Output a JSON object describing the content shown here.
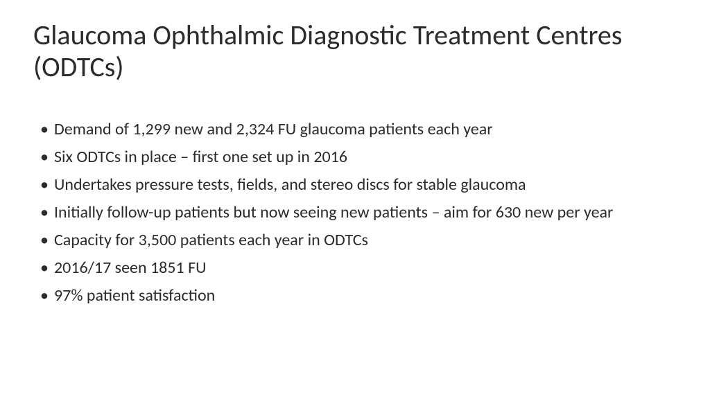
{
  "slide": {
    "title": "Glaucoma Ophthalmic Diagnostic Treatment Centres (ODTCs)",
    "bullets": [
      "Demand of 1,299 new and 2,324 FU glaucoma patients each year",
      "Six ODTCs in place – first one set up in 2016",
      "Undertakes pressure tests, fields, and stereo discs for stable glaucoma",
      "Initially follow-up patients but now seeing new patients – aim for 630 new per year",
      "Capacity for 3,500 patients each year in ODTCs",
      "2016/17 seen 1851 FU",
      "97% patient satisfaction"
    ],
    "colors": {
      "background": "#ffffff",
      "text": "#2b2b2b"
    },
    "typography": {
      "title_fontsize": 40,
      "bullet_fontsize": 24,
      "font_family": "Calibri"
    }
  }
}
